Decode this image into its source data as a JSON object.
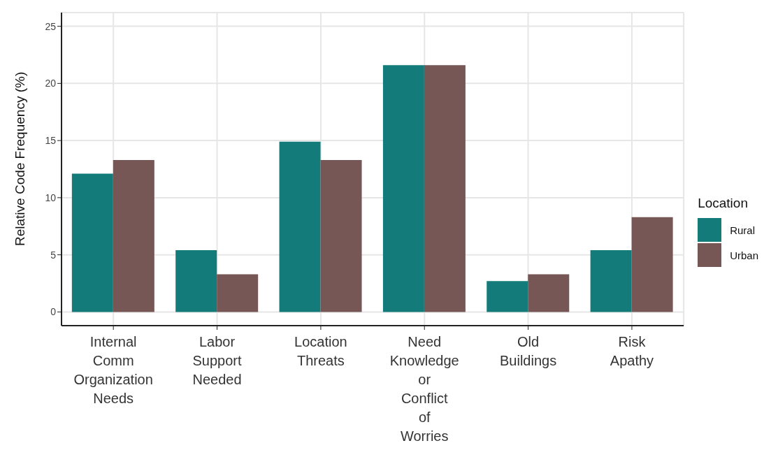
{
  "chart_data": {
    "type": "bar",
    "ylabel": "Relative Code Frequency (%)",
    "legend_title": "Location",
    "categories": [
      "Internal Comm Organization Needs",
      "Labor Support Needed",
      "Location Threats",
      "Need Knowledge or Conflict of Worries",
      "Old Buildings",
      "Risk Apathy"
    ],
    "series": [
      {
        "name": "Rural",
        "color": "#137b79",
        "values": [
          12.1,
          5.4,
          14.9,
          21.6,
          2.7,
          5.4
        ]
      },
      {
        "name": "Urban",
        "color": "#775656",
        "values": [
          13.3,
          3.3,
          13.3,
          21.6,
          3.3,
          8.3
        ]
      }
    ],
    "ylim": [
      -1.2,
      26.2
    ],
    "yticks": [
      0,
      5,
      10,
      15,
      20,
      25
    ],
    "grid": true,
    "legend": "right"
  }
}
